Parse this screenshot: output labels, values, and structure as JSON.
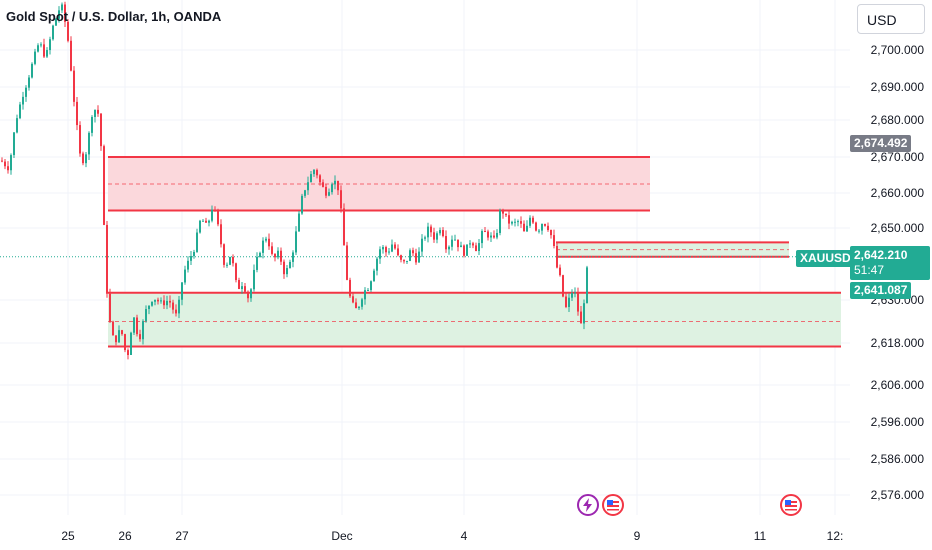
{
  "header": {
    "title": "Gold Spot / U.S. Dollar, 1h, OANDA"
  },
  "currency": {
    "label": "USD"
  },
  "colors": {
    "up": "#22ab94",
    "down": "#f23645",
    "supply_fill": "#fbd8dc",
    "demand_fill": "#def2e2",
    "zone_line": "#f23645",
    "axis_text": "#131722",
    "grid": "#f0f3fa"
  },
  "y_axis": {
    "ticks": [
      "2,700.000",
      "2,690.000",
      "2,680.000",
      "2,670.000",
      "2,660.000",
      "2,650.000",
      "2,630.000",
      "2,618.000",
      "2,606.000",
      "2,596.000",
      "2,586.000",
      "2,576.000"
    ]
  },
  "x_axis": {
    "ticks": [
      "25",
      "26",
      "27",
      "Dec",
      "4",
      "9",
      "11",
      "12:"
    ]
  },
  "badges": {
    "level": "2,674.492",
    "symbol": "XAUUSD",
    "current_price": "2,642.210",
    "countdown": "51:47",
    "support": "2,641.087"
  },
  "events": [
    {
      "name": "lightning-icon",
      "color": "#9c27b0"
    },
    {
      "name": "us-flag-icon",
      "color": "#f23645"
    },
    {
      "name": "us-flag-icon",
      "color": "#f23645"
    }
  ],
  "chart_data": {
    "type": "candlestick",
    "title": "Gold Spot / U.S. Dollar, 1h, OANDA",
    "xlabel": "",
    "ylabel": "",
    "ylim": [
      2571,
      2713
    ],
    "series": [
      {
        "name": "",
        "close_path": [
          [
            0,
            2669
          ],
          [
            8,
            2667
          ],
          [
            15,
            2680
          ],
          [
            22,
            2688
          ],
          [
            30,
            2695
          ],
          [
            38,
            2702
          ],
          [
            45,
            2698
          ],
          [
            52,
            2706
          ],
          [
            60,
            2712
          ],
          [
            66,
            2705
          ],
          [
            70,
            2695
          ],
          [
            75,
            2680
          ],
          [
            80,
            2668
          ],
          [
            86,
            2672
          ],
          [
            92,
            2684
          ],
          [
            97,
            2682
          ],
          [
            101,
            2670
          ],
          [
            104,
            2640
          ],
          [
            108,
            2625
          ],
          [
            113,
            2618
          ],
          [
            120,
            2622
          ],
          [
            126,
            2613
          ],
          [
            132,
            2626
          ],
          [
            138,
            2619
          ],
          [
            145,
            2627
          ],
          [
            152,
            2631
          ],
          [
            160,
            2629
          ],
          [
            168,
            2630
          ],
          [
            176,
            2625
          ],
          [
            182,
            2637
          ],
          [
            188,
            2641
          ],
          [
            194,
            2645
          ],
          [
            200,
            2653
          ],
          [
            206,
            2650
          ],
          [
            212,
            2657
          ],
          [
            218,
            2649
          ],
          [
            224,
            2639
          ],
          [
            230,
            2643
          ],
          [
            236,
            2633
          ],
          [
            242,
            2635
          ],
          [
            248,
            2630
          ],
          [
            254,
            2639
          ],
          [
            260,
            2645
          ],
          [
            266,
            2648
          ],
          [
            272,
            2641
          ],
          [
            278,
            2643
          ],
          [
            284,
            2637
          ],
          [
            290,
            2641
          ],
          [
            296,
            2650
          ],
          [
            302,
            2660
          ],
          [
            308,
            2664
          ],
          [
            314,
            2667
          ],
          [
            320,
            2662
          ],
          [
            326,
            2660
          ],
          [
            332,
            2664
          ],
          [
            338,
            2661
          ],
          [
            342,
            2648
          ],
          [
            346,
            2636
          ],
          [
            350,
            2629
          ],
          [
            356,
            2627
          ],
          [
            362,
            2632
          ],
          [
            368,
            2634
          ],
          [
            374,
            2640
          ],
          [
            380,
            2645
          ],
          [
            386,
            2643
          ],
          [
            392,
            2646
          ],
          [
            398,
            2641
          ],
          [
            404,
            2640
          ],
          [
            410,
            2644
          ],
          [
            416,
            2641
          ],
          [
            422,
            2647
          ],
          [
            428,
            2650
          ],
          [
            434,
            2647
          ],
          [
            440,
            2651
          ],
          [
            446,
            2644
          ],
          [
            452,
            2648
          ],
          [
            458,
            2645
          ],
          [
            464,
            2643
          ],
          [
            470,
            2647
          ],
          [
            476,
            2644
          ],
          [
            482,
            2649
          ],
          [
            488,
            2648
          ],
          [
            494,
            2646
          ],
          [
            500,
            2656
          ],
          [
            506,
            2652
          ],
          [
            512,
            2651
          ],
          [
            518,
            2652
          ],
          [
            524,
            2648
          ],
          [
            530,
            2654
          ],
          [
            536,
            2649
          ],
          [
            542,
            2652
          ],
          [
            548,
            2650
          ],
          [
            552,
            2646
          ],
          [
            556,
            2639
          ],
          [
            560,
            2635
          ],
          [
            564,
            2627
          ],
          [
            568,
            2630
          ],
          [
            572,
            2633
          ],
          [
            576,
            2630
          ],
          [
            579,
            2621
          ],
          [
            582,
            2627
          ],
          [
            585,
            2636
          ],
          [
            588,
            2642
          ]
        ]
      }
    ],
    "zones": [
      {
        "name": "supply",
        "high": 2670,
        "low": 2655,
        "mid": 2662.5
      },
      {
        "name": "demand-upper-line",
        "value": 2632
      },
      {
        "name": "demand",
        "high": 2632,
        "low": 2617,
        "mid": 2624
      },
      {
        "name": "projection",
        "high": 2646,
        "low": 2642,
        "mid": 2644
      }
    ]
  }
}
